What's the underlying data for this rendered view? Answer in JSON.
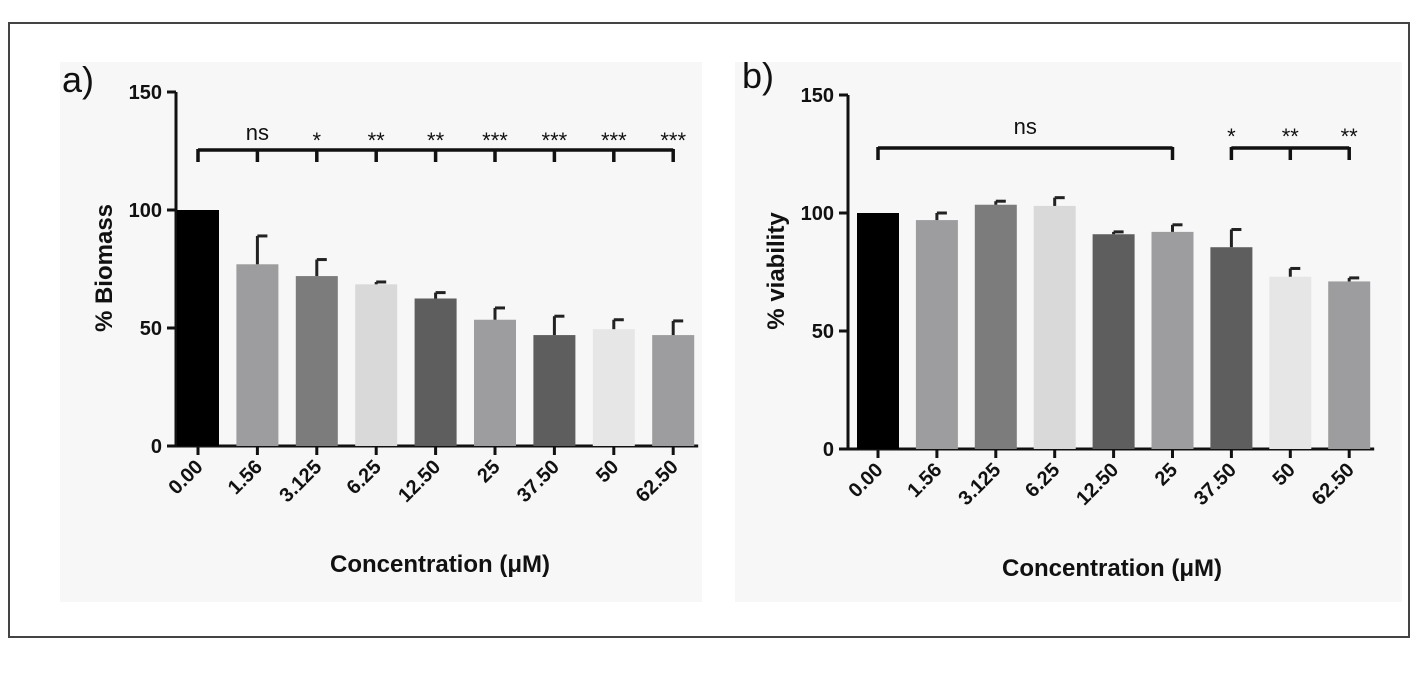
{
  "chart_data": [
    {
      "type": "bar",
      "panel_label": "a)",
      "xlabel": "Concentration (μM)",
      "ylabel": "% Biomass",
      "ylim": [
        0,
        150
      ],
      "yticks": [
        0,
        50,
        100,
        150
      ],
      "categories": [
        "0.00",
        "1.56",
        "3.125",
        "6.25",
        "12.50",
        "25",
        "37.50",
        "50",
        "62.50"
      ],
      "values": [
        100,
        77,
        72,
        68.5,
        62.5,
        53.5,
        47,
        49.5,
        47
      ],
      "errors": [
        0,
        12,
        7,
        1,
        2.5,
        5,
        8,
        4,
        6
      ],
      "bar_colors": [
        "#000000",
        "#9d9d9f",
        "#7c7c7c",
        "#d9d9d9",
        "#5e5e5e",
        "#9d9d9f",
        "#5e5e5e",
        "#e6e6e6",
        "#9d9d9f"
      ],
      "significance": {
        "bracket": {
          "from": 0,
          "to": 8,
          "drops": [
            1,
            2,
            3,
            4,
            5,
            6,
            7,
            8
          ]
        },
        "labels": [
          "",
          "ns",
          "*",
          "**",
          "**",
          "***",
          "***",
          "***",
          "***"
        ]
      }
    },
    {
      "type": "bar",
      "panel_label": "b)",
      "xlabel": "Concentration (μM)",
      "ylabel": "% viability",
      "ylim": [
        0,
        150
      ],
      "yticks": [
        0,
        50,
        100,
        150
      ],
      "categories": [
        "0.00",
        "1.56",
        "3.125",
        "6.25",
        "12.50",
        "25",
        "37.50",
        "50",
        "62.50"
      ],
      "values": [
        100,
        97,
        103.5,
        103,
        91,
        92,
        85.5,
        73,
        71
      ],
      "errors": [
        0,
        3,
        1.5,
        3.5,
        1,
        3,
        7.5,
        3.5,
        1.5
      ],
      "bar_colors": [
        "#000000",
        "#9d9d9f",
        "#7c7c7c",
        "#d9d9d9",
        "#5e5e5e",
        "#9d9d9f",
        "#5e5e5e",
        "#e6e6e6",
        "#9d9d9f"
      ],
      "significance": {
        "brackets": [
          {
            "from": 0,
            "to": 5,
            "drops": [],
            "label": "ns"
          },
          {
            "from": 6,
            "to": 8,
            "drops": [
              7
            ],
            "labels": [
              "*",
              "**",
              "**"
            ]
          }
        ]
      }
    }
  ]
}
